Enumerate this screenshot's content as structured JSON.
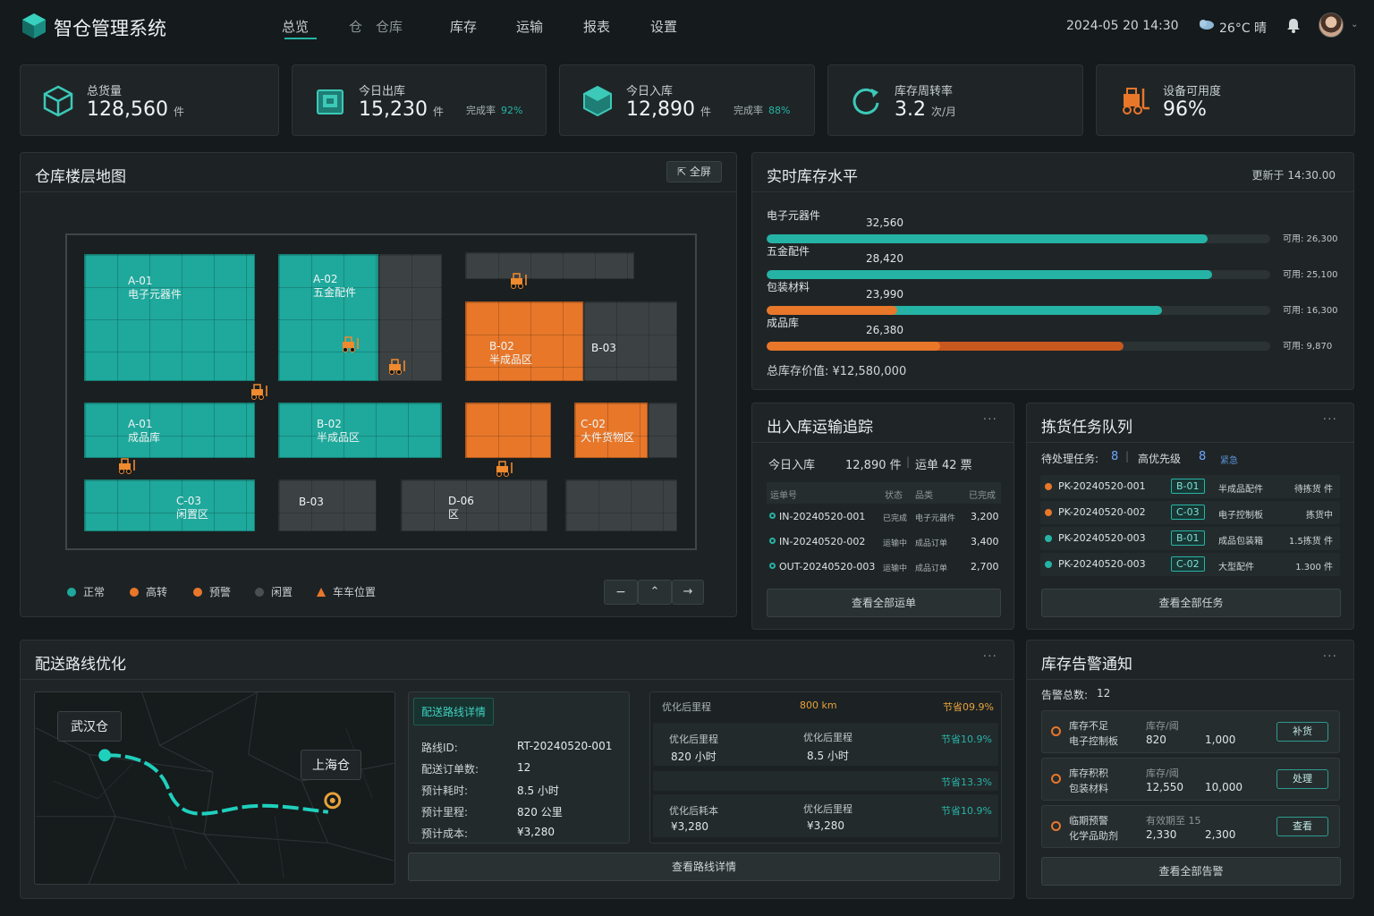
{
  "header": {
    "app_title": "智仓管理系统",
    "nav": [
      "总览",
      "仓　仓库",
      "库存",
      "运输",
      "报表",
      "设置"
    ],
    "datetime": "2024-05 20 14:30",
    "weather": "26°C 晴"
  },
  "kpis": [
    {
      "label": "总货量",
      "value": "128,560",
      "unit": "件",
      "icon": "cube-icon"
    },
    {
      "label": "今日出库",
      "value": "15,230",
      "unit": "件",
      "extra_label": "完成率",
      "extra_value": "92%",
      "icon": "outbound-box-icon"
    },
    {
      "label": "今日入库",
      "value": "12,890",
      "unit": "件",
      "extra_label": "完成率",
      "extra_value": "88%",
      "icon": "inbound-box-icon"
    },
    {
      "label": "库存周转率",
      "value": "3.2",
      "unit": "次/月",
      "icon": "refresh-icon"
    },
    {
      "label": "设备可用度",
      "value": "96%",
      "unit": "",
      "icon": "forklift-icon"
    }
  ],
  "floor_map": {
    "title": "仓库楼层地图",
    "fullscreen": "全屏",
    "zones": [
      {
        "code": "A-01",
        "name": "电子元器件",
        "status": "normal"
      },
      {
        "code": "A-02",
        "name": "五金配件",
        "status": "normal"
      },
      {
        "code": "B-02",
        "name": "半成品区",
        "status": "high"
      },
      {
        "code": "B-03",
        "name": "",
        "status": "idle"
      },
      {
        "code": "A-01",
        "name": "成品库",
        "status": "normal"
      },
      {
        "code": "B-02",
        "name": "半成品区",
        "status": "normal"
      },
      {
        "code": "C-02",
        "name": "大件货物区",
        "status": "warn"
      },
      {
        "code": "C-03",
        "name": "闲置区",
        "status": "normal"
      },
      {
        "code": "B-03",
        "name": "",
        "status": "idle"
      },
      {
        "code": "D-06",
        "name": "区",
        "status": "idle"
      }
    ],
    "legend": [
      "正常",
      "高转",
      "预警",
      "闲置",
      "车车位置"
    ],
    "colors": {
      "normal": "#1fa89c",
      "high": "#e8772a",
      "idle": "#3c4244"
    }
  },
  "inventory": {
    "title": "实时库存水平",
    "updated": "更新于 14:30.00",
    "items": [
      {
        "name": "电子元器件",
        "value": "32,560",
        "available": "可用: 26,300",
        "fill": 0.875,
        "orange": 0
      },
      {
        "name": "五金配件",
        "value": "28,420",
        "available": "可用: 25,100",
        "fill": 0.885,
        "orange": 0
      },
      {
        "name": "包装材料",
        "value": "23,990",
        "available": "可用: 16,300",
        "fill": 0.785,
        "orange": 0.26
      },
      {
        "name": "成品库",
        "value": "26,380",
        "available": "可用: 9,870",
        "fill": 0.708,
        "orange": 0.345
      }
    ],
    "total": "总库存价值: ¥12,580,000"
  },
  "transport": {
    "title": "出入库运输追踪",
    "today_label": "今日入库",
    "today_value": "12,890 件",
    "orders_label": "运单",
    "orders_value": "42 票",
    "headers": [
      "运单号",
      "状态",
      "品类",
      "已完成"
    ],
    "rows": [
      {
        "id": "IN-20240520-001",
        "status": "已完成",
        "cat": "电子元器件",
        "qty": "3,200"
      },
      {
        "id": "IN-20240520-002",
        "status": "运输中",
        "cat": "成品订单",
        "qty": "3,400"
      },
      {
        "id": "OUT-20240520-003",
        "status": "运输中",
        "cat": "成品订单",
        "qty": "2,700"
      }
    ],
    "button": "查看全部运单"
  },
  "picking": {
    "title": "拣货任务队列",
    "pending_label": "待处理任务:",
    "pending_value": "8",
    "priority_label": "高优先级",
    "priority_value": "8",
    "link": "紧急",
    "rows": [
      {
        "id": "PK-20240520-001",
        "zone": "B-01",
        "item": "半成品配件",
        "status": "待拣货 件"
      },
      {
        "id": "PK-20240520-002",
        "zone": "C-03",
        "item": "电子控制板",
        "status": "拣货中"
      },
      {
        "id": "PK-20240520-003",
        "zone": "B-01",
        "item": "成品包装箱",
        "status": "1.5拣货 件"
      },
      {
        "id": "PK-20240520-003",
        "zone": "C-02",
        "item": "大型配件",
        "status": "1.300 件"
      }
    ],
    "button": "查看全部任务"
  },
  "route": {
    "title": "配送路线优化",
    "origin": "武汉仓",
    "dest": "上海仓",
    "detail_tab": "配送路线详情",
    "details": [
      {
        "k": "路线ID:",
        "v": "RT-20240520-001"
      },
      {
        "k": "配送订单数:",
        "v": "12"
      },
      {
        "k": "预计耗时:",
        "v": "8.5 小时"
      },
      {
        "k": "预计里程:",
        "v": "820 公里"
      },
      {
        "k": "预计成本:",
        "v": "¥3,280"
      }
    ],
    "opt_header": [
      "优化后里程",
      "800 km",
      "节省09.9%"
    ],
    "opt_rows": [
      {
        "a_label": "优化后里程",
        "a_val": "820 小时",
        "b_label": "优化后里程",
        "b_val": "8.5 小时",
        "save": "节省10.9%"
      },
      {
        "a_label": "",
        "a_val": "",
        "b_label": "",
        "b_val": "",
        "save": "节省13.3%"
      },
      {
        "a_label": "优化后耗本",
        "a_val": "¥3,280",
        "b_label": "优化后里程",
        "b_val": "¥3,280",
        "save": "节省10.9%"
      }
    ],
    "button": "查看路线详情"
  },
  "alerts": {
    "title": "库存告警通知",
    "count_label": "告警总数:",
    "count_value": "12",
    "items": [
      {
        "type": "库存不足",
        "item": "电子控制板",
        "head": "库存/阈",
        "a": "820",
        "b": "1,000",
        "action": "补货",
        "color": "#e8772a"
      },
      {
        "type": "库存积积",
        "item": "包装材料",
        "head": "库存/阈",
        "a": "12,550",
        "b": "10,000",
        "action": "处理",
        "color": "#e8772a"
      },
      {
        "type": "临期预警",
        "item": "化学品助剂",
        "head": "有效期至 15",
        "a": "2,330",
        "b": "2,300",
        "action": "查看",
        "color": "#e8772a"
      }
    ],
    "button": "查看全部告警"
  }
}
